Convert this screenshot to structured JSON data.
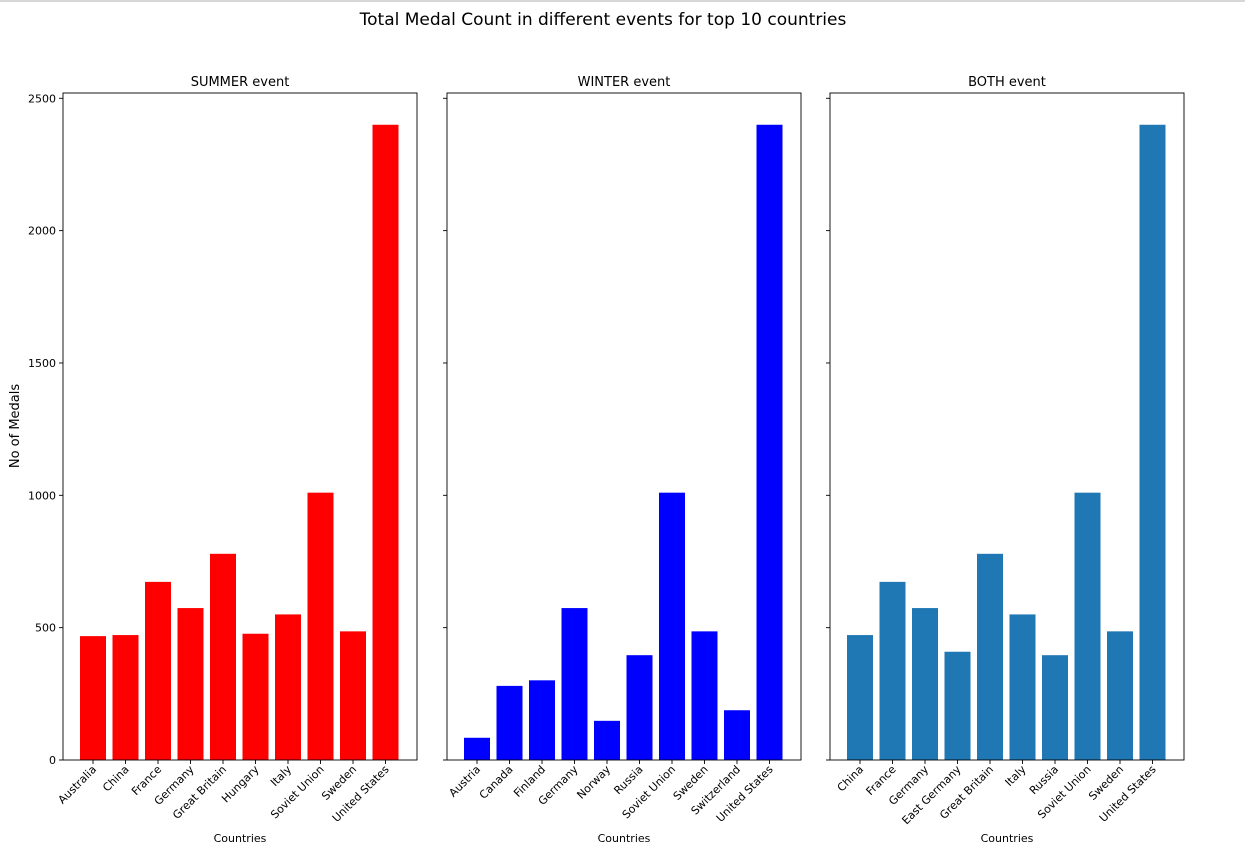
{
  "suptitle": "Total Medal Count in different events for top 10 countries",
  "ylabel": "No of Medals",
  "chart_data": [
    {
      "type": "bar",
      "title": "SUMMER event",
      "xlabel": "Countries",
      "ylabel": "No of Medals",
      "ylim": [
        0,
        2520
      ],
      "yticks": [
        0,
        500,
        1000,
        1500,
        2000,
        2500
      ],
      "color": "#ff0000",
      "categories": [
        "Australia",
        "China",
        "France",
        "Germany",
        "Great Britain",
        "Hungary",
        "Italy",
        "Soviet Union",
        "Sweden",
        "United States"
      ],
      "values": [
        468,
        472,
        673,
        574,
        779,
        477,
        550,
        1010,
        486,
        2400
      ]
    },
    {
      "type": "bar",
      "title": "WINTER event",
      "xlabel": "Countries",
      "ylim": [
        0,
        2520
      ],
      "yticks": [
        0,
        500,
        1000,
        1500,
        2000,
        2500
      ],
      "color": "#0000ff",
      "categories": [
        "Austria",
        "Canada",
        "Finland",
        "Germany",
        "Norway",
        "Russia",
        "Soviet Union",
        "Sweden",
        "Switzerland",
        "United States"
      ],
      "values": [
        84,
        280,
        301,
        574,
        148,
        396,
        1010,
        486,
        188,
        2400
      ]
    },
    {
      "type": "bar",
      "title": "BOTH event",
      "xlabel": "Countries",
      "ylim": [
        0,
        2520
      ],
      "yticks": [
        0,
        500,
        1000,
        1500,
        2000,
        2500
      ],
      "color": "#1f77b4",
      "categories": [
        "China",
        "France",
        "Germany",
        "East Germany",
        "Great Britain",
        "Italy",
        "Russia",
        "Soviet Union",
        "Sweden",
        "United States"
      ],
      "values": [
        472,
        673,
        574,
        409,
        779,
        550,
        396,
        1010,
        486,
        2400
      ]
    }
  ]
}
